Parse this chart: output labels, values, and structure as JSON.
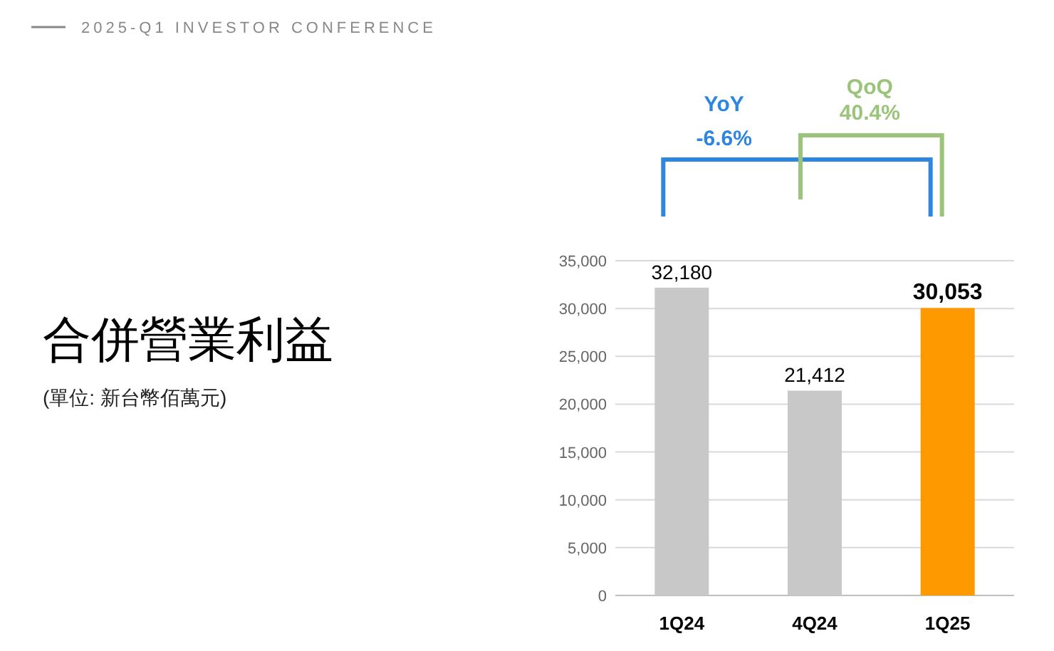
{
  "chart_data": {
    "type": "bar",
    "title": "合併營業利益",
    "subtitle": "(單位:  新台幣佰萬元)",
    "annotations": [
      "2025-Q1 INVESTOR CONFERENCE",
      "YoY",
      "-6.6%",
      "QoQ",
      "40.4%"
    ],
    "categories": [
      "1Q24",
      "4Q24",
      "1Q25"
    ],
    "values": [
      32180,
      21412,
      30053
    ],
    "colors": [
      "#c8c8c8",
      "#c8c8c8",
      "#ff9900"
    ],
    "value_labels": [
      "32,180",
      "21,412",
      "30,053"
    ],
    "ylim": [
      0,
      35000
    ],
    "yticks": [
      0,
      {
        "value": 5000,
        "label": "5,000"
      },
      {
        "value": 10000,
        "label": "10,000"
      },
      {
        "value": 15000,
        "label": "15,000"
      },
      {
        "value": 20000,
        "label": "20,000"
      },
      {
        "value": 25000,
        "label": "25,000"
      },
      {
        "value": 30000,
        "label": "30,000"
      },
      {
        "value": 35000,
        "label": "35,000"
      }
    ],
    "grid": "y"
  }
}
